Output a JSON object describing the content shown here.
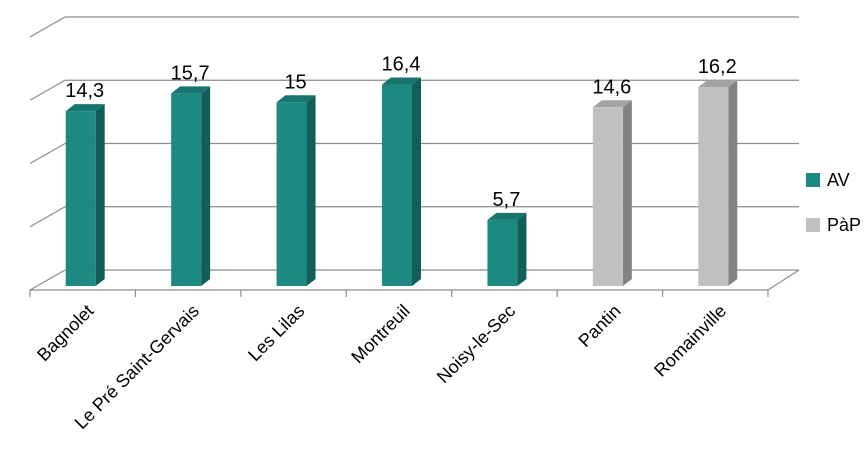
{
  "chart_data": {
    "type": "bar",
    "categories": [
      "Bagnolet",
      "Le Pré Saint-Gervais",
      "Les Lilas",
      "Montreuil",
      "Noisy-le-Sec",
      "Pantin",
      "Romainville"
    ],
    "values": [
      14.3,
      15.7,
      15,
      16.4,
      5.7,
      14.6,
      16.2
    ],
    "value_labels": [
      "14,3",
      "15,7",
      "15",
      "16,4",
      "5,7",
      "14,6",
      "16,2"
    ],
    "groups": [
      "AV",
      "AV",
      "AV",
      "AV",
      "AV",
      "PàP",
      "PàP"
    ],
    "legend": [
      {
        "name": "AV",
        "color": "#1c8a80"
      },
      {
        "name": "PàP",
        "color": "#c0c0c0"
      }
    ],
    "legend_position": "right",
    "title": "",
    "xlabel": "",
    "ylabel": "",
    "ylim": [
      0,
      20
    ],
    "gridlines": true,
    "style": "3d-column"
  }
}
